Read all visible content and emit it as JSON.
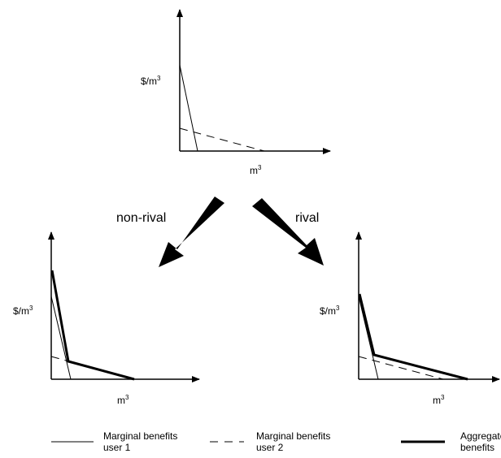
{
  "axis_labels": {
    "y_unit": "$/m",
    "x_unit": "m",
    "exponent": "3"
  },
  "arrows": {
    "left": "non-rival",
    "right": "rival"
  },
  "legend": {
    "user1_line1": "Marginal benefits",
    "user1_line2": "user 1",
    "user2_line1": "Marginal benefits",
    "user2_line2": "user 2",
    "aggregate_line1": "Aggregate",
    "aggregate_line2": "benefits"
  }
}
